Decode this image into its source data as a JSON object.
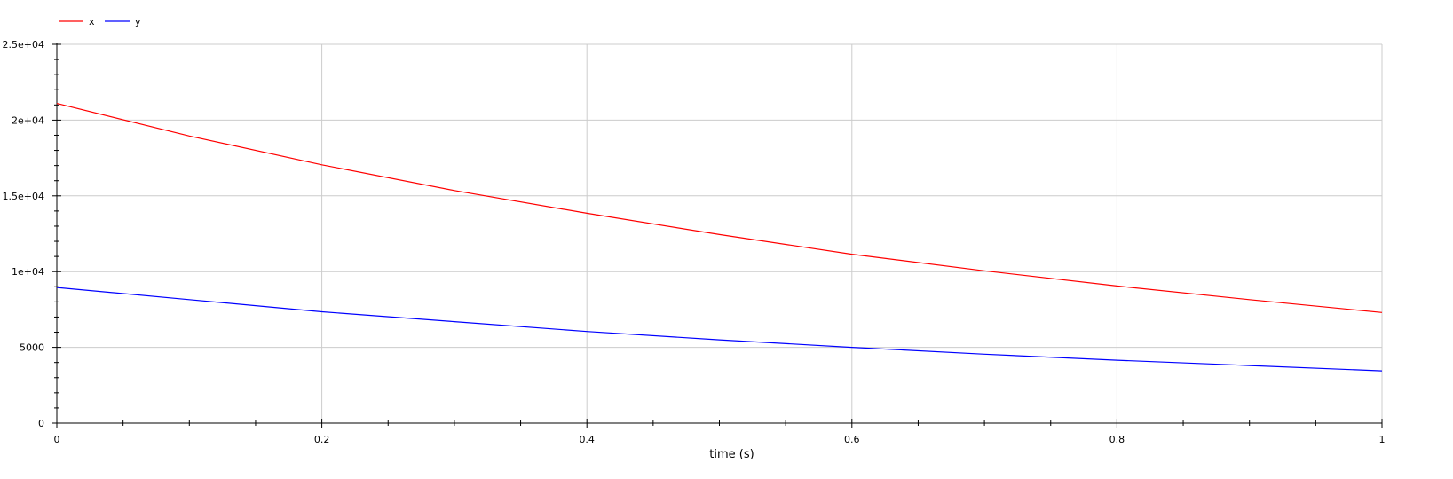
{
  "chart_data": {
    "type": "line",
    "title": "",
    "xlabel": "time (s)",
    "ylabel": "",
    "xlim": [
      0,
      1
    ],
    "ylim": [
      0,
      25000
    ],
    "x_ticks": [
      0,
      0.2,
      0.4,
      0.6,
      0.8,
      1
    ],
    "x_tick_labels": [
      "0",
      "0.2",
      "0.4",
      "0.6",
      "0.8",
      "1"
    ],
    "y_ticks": [
      0,
      5000,
      10000,
      15000,
      20000,
      25000
    ],
    "y_tick_labels": [
      "0",
      "5000",
      "1e+04",
      "1.5e+04",
      "2e+04",
      "2.5e+04"
    ],
    "grid": true,
    "legend_position": "top-left",
    "x": [
      0,
      0.1,
      0.2,
      0.3,
      0.4,
      0.5,
      0.6,
      0.7,
      0.8,
      0.9,
      1.0
    ],
    "series": [
      {
        "name": "x",
        "color": "#ff0000",
        "values": [
          21100,
          18950,
          17050,
          15350,
          13850,
          12450,
          11150,
          10050,
          9050,
          8150,
          7300
        ]
      },
      {
        "name": "y",
        "color": "#0000ff",
        "values": [
          8950,
          8150,
          7350,
          6700,
          6050,
          5500,
          5000,
          4550,
          4150,
          3800,
          3450
        ]
      }
    ]
  }
}
